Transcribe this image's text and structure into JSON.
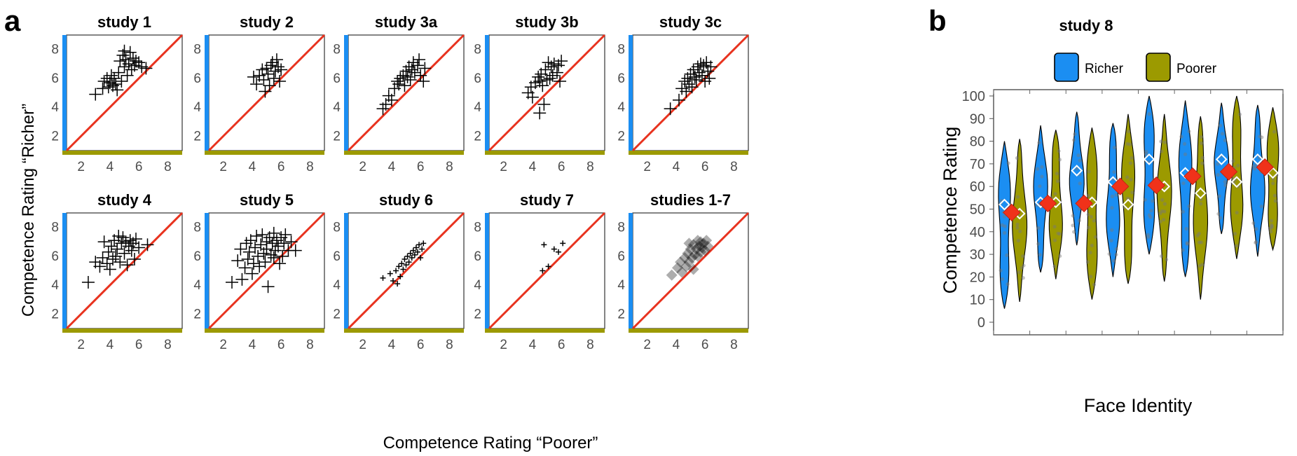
{
  "figure": {
    "panel_a_label": "a",
    "panel_b_label": "b",
    "a_xlabel": "Competence Rating “Poorer”",
    "a_ylabel": "Competence Rating “Richer”",
    "b_title": "study 8",
    "b_xlabel": "Face Identity",
    "b_ylabel": "Competence Rating",
    "legend": [
      "Richer",
      "Poorer"
    ]
  },
  "colors": {
    "richer": "#1b8ef2",
    "poorer": "#9c9a00",
    "identity_line": "#e8321e",
    "mean_marker": "#f0321a"
  },
  "chart_data": [
    {
      "type": "scatter",
      "title": "study 1",
      "xlim": [
        1,
        9
      ],
      "ylim": [
        1,
        9
      ],
      "xticks": [
        2,
        4,
        6,
        8
      ],
      "yticks": [
        2,
        4,
        6,
        8
      ],
      "reference_line": "y = x",
      "points": [
        [
          3.0,
          4.9
        ],
        [
          3.5,
          5.3
        ],
        [
          3.6,
          5.8
        ],
        [
          3.8,
          6.0
        ],
        [
          3.9,
          5.4
        ],
        [
          4.0,
          5.7
        ],
        [
          4.1,
          6.2
        ],
        [
          4.2,
          5.5
        ],
        [
          4.3,
          6.0
        ],
        [
          4.4,
          5.6
        ],
        [
          4.5,
          5.2
        ],
        [
          4.6,
          6.4
        ],
        [
          4.7,
          7.2
        ],
        [
          4.8,
          5.8
        ],
        [
          4.9,
          7.6
        ],
        [
          5.0,
          6.8
        ],
        [
          5.0,
          7.9
        ],
        [
          5.1,
          7.3
        ],
        [
          5.2,
          6.2
        ],
        [
          5.3,
          7.0
        ],
        [
          5.4,
          7.8
        ],
        [
          5.5,
          6.6
        ],
        [
          5.6,
          7.4
        ],
        [
          5.7,
          6.9
        ],
        [
          5.8,
          7.2
        ],
        [
          6.0,
          7.1
        ],
        [
          6.2,
          6.8
        ],
        [
          6.5,
          6.7
        ]
      ]
    },
    {
      "type": "scatter",
      "title": "study 2",
      "xlim": [
        1,
        9
      ],
      "ylim": [
        1,
        9
      ],
      "xticks": [
        2,
        4,
        6,
        8
      ],
      "yticks": [
        2,
        4,
        6,
        8
      ],
      "reference_line": "y = x",
      "points": [
        [
          4.1,
          6.1
        ],
        [
          4.3,
          5.6
        ],
        [
          4.5,
          6.2
        ],
        [
          4.7,
          6.6
        ],
        [
          4.8,
          5.9
        ],
        [
          4.9,
          5.1
        ],
        [
          5.0,
          6.7
        ],
        [
          5.1,
          6.3
        ],
        [
          5.2,
          5.5
        ],
        [
          5.3,
          6.9
        ],
        [
          5.4,
          7.1
        ],
        [
          5.5,
          6.0
        ],
        [
          5.6,
          6.5
        ],
        [
          5.7,
          7.3
        ],
        [
          5.8,
          6.8
        ],
        [
          5.9,
          5.8
        ],
        [
          6.0,
          6.6
        ]
      ]
    },
    {
      "type": "scatter",
      "title": "study 3a",
      "xlim": [
        1,
        9
      ],
      "ylim": [
        1,
        9
      ],
      "xticks": [
        2,
        4,
        6,
        8
      ],
      "yticks": [
        2,
        4,
        6,
        8
      ],
      "reference_line": "y = x",
      "points": [
        [
          3.4,
          3.9
        ],
        [
          3.6,
          4.2
        ],
        [
          3.8,
          4.8
        ],
        [
          4.0,
          4.5
        ],
        [
          4.2,
          5.3
        ],
        [
          4.4,
          5.8
        ],
        [
          4.5,
          5.6
        ],
        [
          4.6,
          6.0
        ],
        [
          4.8,
          6.2
        ],
        [
          4.9,
          5.5
        ],
        [
          5.0,
          6.5
        ],
        [
          5.1,
          6.1
        ],
        [
          5.2,
          6.8
        ],
        [
          5.3,
          5.9
        ],
        [
          5.4,
          6.6
        ],
        [
          5.5,
          7.1
        ],
        [
          5.6,
          6.4
        ],
        [
          5.8,
          6.9
        ],
        [
          5.9,
          7.3
        ],
        [
          6.0,
          6.2
        ],
        [
          6.2,
          5.8
        ],
        [
          6.3,
          6.7
        ]
      ]
    },
    {
      "type": "scatter",
      "title": "study 3b",
      "xlim": [
        1,
        9
      ],
      "ylim": [
        1,
        9
      ],
      "xticks": [
        2,
        4,
        6,
        8
      ],
      "yticks": [
        2,
        4,
        6,
        8
      ],
      "reference_line": "y = x",
      "points": [
        [
          3.7,
          5.0
        ],
        [
          3.9,
          5.4
        ],
        [
          4.0,
          4.7
        ],
        [
          4.2,
          5.7
        ],
        [
          4.4,
          6.1
        ],
        [
          4.5,
          3.6
        ],
        [
          4.5,
          5.8
        ],
        [
          4.6,
          6.3
        ],
        [
          4.7,
          5.5
        ],
        [
          4.8,
          4.2
        ],
        [
          4.9,
          6.6
        ],
        [
          5.0,
          5.9
        ],
        [
          5.1,
          7.1
        ],
        [
          5.2,
          6.0
        ],
        [
          5.3,
          6.8
        ],
        [
          5.4,
          6.2
        ],
        [
          5.5,
          7.0
        ],
        [
          5.7,
          6.4
        ],
        [
          5.8,
          6.9
        ],
        [
          5.9,
          5.8
        ],
        [
          6.0,
          7.2
        ]
      ]
    },
    {
      "type": "scatter",
      "title": "study 3c",
      "xlim": [
        1,
        9
      ],
      "ylim": [
        1,
        9
      ],
      "xticks": [
        2,
        4,
        6,
        8
      ],
      "yticks": [
        2,
        4,
        6,
        8
      ],
      "reference_line": "y = x",
      "points": [
        [
          3.6,
          3.9
        ],
        [
          4.2,
          4.5
        ],
        [
          4.4,
          5.3
        ],
        [
          4.6,
          5.8
        ],
        [
          4.7,
          5.1
        ],
        [
          4.8,
          6.0
        ],
        [
          4.9,
          5.6
        ],
        [
          5.0,
          6.3
        ],
        [
          5.1,
          5.4
        ],
        [
          5.2,
          6.6
        ],
        [
          5.3,
          6.1
        ],
        [
          5.4,
          5.9
        ],
        [
          5.5,
          6.8
        ],
        [
          5.6,
          6.4
        ],
        [
          5.7,
          7.0
        ],
        [
          5.8,
          6.2
        ],
        [
          5.9,
          6.9
        ],
        [
          6.0,
          5.8
        ],
        [
          6.1,
          7.1
        ],
        [
          6.2,
          6.5
        ],
        [
          6.3,
          6.0
        ],
        [
          6.4,
          6.8
        ]
      ]
    },
    {
      "type": "scatter",
      "title": "study 4",
      "xlim": [
        1,
        9
      ],
      "ylim": [
        1,
        9
      ],
      "xticks": [
        2,
        4,
        6,
        8
      ],
      "yticks": [
        2,
        4,
        6,
        8
      ],
      "reference_line": "y = x",
      "points": [
        [
          2.5,
          4.2
        ],
        [
          3.0,
          5.6
        ],
        [
          3.3,
          5.3
        ],
        [
          3.5,
          5.9
        ],
        [
          3.6,
          7.0
        ],
        [
          3.8,
          5.5
        ],
        [
          3.9,
          6.3
        ],
        [
          4.0,
          5.1
        ],
        [
          4.1,
          6.7
        ],
        [
          4.2,
          5.8
        ],
        [
          4.3,
          7.1
        ],
        [
          4.4,
          6.0
        ],
        [
          4.5,
          6.5
        ],
        [
          4.6,
          7.4
        ],
        [
          4.7,
          5.6
        ],
        [
          4.8,
          6.9
        ],
        [
          4.9,
          7.3
        ],
        [
          5.0,
          6.2
        ],
        [
          5.1,
          7.0
        ],
        [
          5.2,
          5.4
        ],
        [
          5.3,
          6.7
        ],
        [
          5.4,
          7.1
        ],
        [
          5.5,
          6.4
        ],
        [
          5.6,
          6.9
        ],
        [
          5.7,
          5.8
        ],
        [
          5.8,
          7.2
        ],
        [
          6.0,
          6.6
        ],
        [
          6.6,
          6.8
        ]
      ]
    },
    {
      "type": "scatter",
      "title": "study 5",
      "xlim": [
        1,
        9
      ],
      "ylim": [
        1,
        9
      ],
      "xticks": [
        2,
        4,
        6,
        8
      ],
      "yticks": [
        2,
        4,
        6,
        8
      ],
      "reference_line": "y = x",
      "points": [
        [
          2.6,
          4.2
        ],
        [
          3.0,
          5.7
        ],
        [
          3.2,
          6.5
        ],
        [
          3.3,
          4.4
        ],
        [
          3.5,
          5.2
        ],
        [
          3.6,
          6.9
        ],
        [
          3.7,
          5.8
        ],
        [
          3.8,
          6.3
        ],
        [
          3.9,
          7.1
        ],
        [
          4.0,
          4.8
        ],
        [
          4.1,
          5.5
        ],
        [
          4.2,
          6.6
        ],
        [
          4.3,
          7.4
        ],
        [
          4.4,
          6.0
        ],
        [
          4.5,
          5.3
        ],
        [
          4.6,
          6.8
        ],
        [
          4.7,
          7.5
        ],
        [
          4.8,
          6.2
        ],
        [
          4.9,
          5.6
        ],
        [
          5.0,
          7.0
        ],
        [
          5.0,
          6.5
        ],
        [
          5.1,
          3.9
        ],
        [
          5.2,
          7.3
        ],
        [
          5.3,
          6.1
        ],
        [
          5.4,
          6.9
        ],
        [
          5.5,
          7.6
        ],
        [
          5.5,
          5.9
        ],
        [
          5.6,
          6.4
        ],
        [
          5.7,
          7.1
        ],
        [
          5.8,
          6.7
        ],
        [
          5.9,
          5.5
        ],
        [
          6.0,
          7.3
        ],
        [
          6.1,
          6.0
        ],
        [
          6.2,
          6.9
        ],
        [
          6.3,
          7.5
        ],
        [
          6.5,
          6.4
        ],
        [
          6.7,
          7.0
        ],
        [
          7.0,
          6.4
        ]
      ]
    },
    {
      "type": "scatter",
      "title": "study 6",
      "xlim": [
        1,
        9
      ],
      "ylim": [
        1,
        9
      ],
      "xticks": [
        2,
        4,
        6,
        8
      ],
      "yticks": [
        2,
        4,
        6,
        8
      ],
      "reference_line": "y = x",
      "points": [
        [
          3.4,
          4.5
        ],
        [
          3.9,
          4.8
        ],
        [
          4.1,
          4.3
        ],
        [
          4.3,
          5.0
        ],
        [
          4.4,
          4.1
        ],
        [
          4.5,
          5.3
        ],
        [
          4.6,
          4.6
        ],
        [
          4.7,
          5.5
        ],
        [
          4.8,
          5.1
        ],
        [
          4.9,
          5.8
        ],
        [
          5.0,
          5.4
        ],
        [
          5.1,
          6.0
        ],
        [
          5.2,
          5.6
        ],
        [
          5.3,
          6.2
        ],
        [
          5.4,
          5.9
        ],
        [
          5.5,
          6.4
        ],
        [
          5.6,
          6.1
        ],
        [
          5.7,
          6.6
        ],
        [
          5.8,
          6.3
        ],
        [
          5.9,
          6.8
        ],
        [
          6.0,
          5.9
        ],
        [
          6.1,
          6.5
        ],
        [
          6.2,
          6.9
        ]
      ]
    },
    {
      "type": "scatter",
      "title": "study 7",
      "xlim": [
        1,
        9
      ],
      "ylim": [
        1,
        9
      ],
      "xticks": [
        2,
        4,
        6,
        8
      ],
      "yticks": [
        2,
        4,
        6,
        8
      ],
      "reference_line": "y = x",
      "points": [
        [
          4.7,
          5.0
        ],
        [
          4.8,
          6.8
        ],
        [
          5.1,
          5.3
        ],
        [
          5.5,
          6.5
        ],
        [
          5.8,
          6.3
        ],
        [
          6.1,
          6.9
        ]
      ]
    },
    {
      "type": "scatter",
      "title": "studies 1-7",
      "xlim": [
        1,
        9
      ],
      "ylim": [
        1,
        9
      ],
      "xticks": [
        2,
        4,
        6,
        8
      ],
      "yticks": [
        2,
        4,
        6,
        8
      ],
      "reference_line": "y = x",
      "marker": "diamond",
      "points": [
        [
          3.7,
          4.7
        ],
        [
          4.1,
          5.2
        ],
        [
          4.3,
          5.6
        ],
        [
          4.4,
          4.9
        ],
        [
          4.6,
          5.9
        ],
        [
          4.7,
          5.3
        ],
        [
          4.8,
          6.2
        ],
        [
          4.9,
          5.6
        ],
        [
          5.0,
          6.5
        ],
        [
          5.1,
          5.9
        ],
        [
          5.2,
          6.8
        ],
        [
          5.3,
          6.1
        ],
        [
          5.4,
          6.5
        ],
        [
          5.5,
          7.1
        ],
        [
          5.5,
          6.0
        ],
        [
          5.6,
          6.7
        ],
        [
          5.7,
          6.3
        ],
        [
          5.7,
          7.0
        ],
        [
          5.8,
          6.6
        ],
        [
          5.9,
          6.9
        ],
        [
          6.0,
          6.4
        ],
        [
          6.1,
          7.1
        ],
        [
          6.2,
          6.7
        ],
        [
          5.2,
          5.1
        ],
        [
          4.9,
          6.9
        ]
      ]
    },
    {
      "type": "violin",
      "title": "study 8",
      "ylabel": "Competence Rating",
      "xlabel": "Face Identity",
      "ylim": [
        0,
        100
      ],
      "yticks": [
        0,
        10,
        20,
        30,
        40,
        50,
        60,
        70,
        80,
        90,
        100
      ],
      "series": [
        {
          "name": "Richer",
          "ranges": [
            [
              6,
              80
            ],
            [
              22,
              87
            ],
            [
              34,
              93
            ],
            [
              20,
              88
            ],
            [
              30,
              100
            ],
            [
              20,
              98
            ],
            [
              39,
              97
            ],
            [
              29,
              96
            ]
          ],
          "means": [
            48.5,
            52.5,
            52.5,
            60,
            60.5,
            64.5,
            66.5,
            68.5
          ],
          "medians": [
            52,
            53,
            67,
            62,
            72,
            66,
            72,
            72
          ]
        },
        {
          "name": "Poorer",
          "ranges": [
            [
              9,
              81
            ],
            [
              19,
              85
            ],
            [
              10,
              86
            ],
            [
              17,
              92
            ],
            [
              18,
              92
            ],
            [
              10,
              91
            ],
            [
              28,
              100
            ],
            [
              32,
              95
            ]
          ],
          "means": [
            48.5,
            52.5,
            52.5,
            60,
            60.5,
            64.5,
            66.5,
            68.5
          ],
          "medians": [
            48,
            53,
            53,
            52,
            60,
            57,
            62,
            66
          ]
        }
      ]
    }
  ]
}
